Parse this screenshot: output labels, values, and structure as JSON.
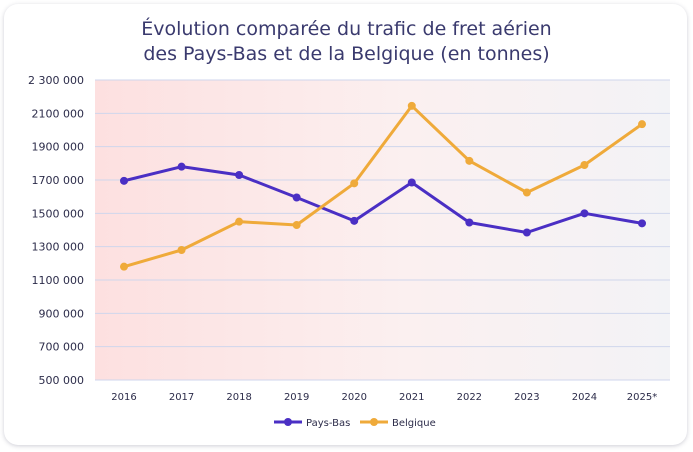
{
  "chart_data": {
    "type": "line",
    "title_line1": "Évolution comparée du trafic de fret aérien",
    "title_line2": "des Pays-Bas et de la Belgique (en tonnes)",
    "xlabel": "",
    "ylabel": "",
    "categories": [
      "2016",
      "2017",
      "2018",
      "2019",
      "2020",
      "2021",
      "2022",
      "2023",
      "2024",
      "2025*"
    ],
    "series": [
      {
        "name": "Pays-Bas",
        "color": "#4a2fc4",
        "values": [
          1695000,
          1780000,
          1730000,
          1595000,
          1455000,
          1685000,
          1445000,
          1385000,
          1500000,
          1440000
        ]
      },
      {
        "name": "Belgique",
        "color": "#efaa3a",
        "values": [
          1180000,
          1280000,
          1450000,
          1430000,
          1680000,
          2145000,
          1815000,
          1625000,
          1790000,
          2035000
        ]
      }
    ],
    "ylim": [
      500000,
      2300000
    ],
    "yticks": [
      500000,
      700000,
      900000,
      1100000,
      1300000,
      1500000,
      1700000,
      1900000,
      2100000,
      2300000
    ],
    "ytick_labels": [
      "500 000",
      "700 000",
      "900 000",
      "1100 000",
      "1300 000",
      "1500 000",
      "1700 000",
      "1900 000",
      "2100 000",
      "2 300 000"
    ],
    "grid": true,
    "legend_position": "bottom-center"
  }
}
